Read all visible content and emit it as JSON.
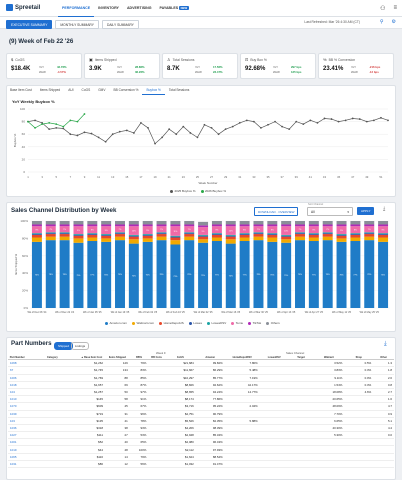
{
  "app": {
    "name": "Spreetail"
  },
  "nav": {
    "items": [
      {
        "label": "PERFORMANCE",
        "active": true
      },
      {
        "label": "INVENTORY",
        "active": false
      },
      {
        "label": "ADVERTISING",
        "active": false
      },
      {
        "label": "PAYABLES",
        "active": false,
        "badge": "NEW"
      }
    ]
  },
  "subtabs": [
    {
      "label": "EXECUTIVE SUMMARY",
      "active": true
    },
    {
      "label": "MONTHLY SUMMARY",
      "active": false
    },
    {
      "label": "DAILY SUMMARY",
      "active": false
    }
  ],
  "last_refreshed": "Last Refreshed: Mar '26 4:30 AM (CT)",
  "week_title": "(9) Week of Feb 22 '26",
  "kpis": [
    {
      "label": "CoGS",
      "icon": "$",
      "value": "$18.4K",
      "yoy_label": "YoY",
      "wow_label": "WoW",
      "yoy": "42.76%",
      "wow": "-4.57%",
      "yoy_dir": "pos",
      "wow_dir": "neg",
      "yoy_abs": "",
      "wow_abs": ""
    },
    {
      "label": "Items Shipped",
      "icon": "▣",
      "value": "3.9K",
      "yoy_label": "YoY",
      "wow_label": "WoW",
      "yoy": "28.86%",
      "wow": "36.26%",
      "yoy_dir": "pos",
      "wow_dir": "pos",
      "yoy_abs": "",
      "wow_abs": ""
    },
    {
      "label": "Total Sessions",
      "icon": "♙",
      "value": "8.7K",
      "yoy_label": "YoY",
      "wow_label": "WoW",
      "yoy": "17.56%",
      "wow": "23.47%",
      "yoy_dir": "pos",
      "wow_dir": "pos",
      "yoy_abs": "",
      "wow_abs": ""
    },
    {
      "label": "Buy Box %",
      "icon": "⊡",
      "value": "92.68%",
      "yoy_label": "YoY",
      "wow_label": "WoW",
      "yoy": "297 bps",
      "wow": "125 bps",
      "yoy_dir": "pos",
      "wow_dir": "pos",
      "yoy_abs": "",
      "wow_abs": ""
    },
    {
      "label": "BB % Conversion",
      "icon": "%",
      "value": "23.41%",
      "yoy_label": "YoY",
      "wow_label": "WoW",
      "yoy": "-216 bps",
      "wow": "-12 bps",
      "yoy_dir": "neg",
      "wow_dir": "neg",
      "yoy_abs": "",
      "wow_abs": ""
    }
  ],
  "metric_tabs": [
    {
      "label": "Base Item Cost",
      "active": false
    },
    {
      "label": "Items Shipped",
      "active": false
    },
    {
      "label": "AUI",
      "active": false
    },
    {
      "label": "CoGS",
      "active": false
    },
    {
      "label": "GMV",
      "active": false
    },
    {
      "label": "BB Conversion %",
      "active": false
    },
    {
      "label": "Buybox %",
      "active": true
    },
    {
      "label": "Total Sessions",
      "active": false
    }
  ],
  "line_chart": {
    "title": "YoY Weekly Buybox %",
    "ylabel": "Buybox %",
    "xlabel": "Week Number",
    "y_ticks": [
      "100",
      "80",
      "60",
      "40",
      "20",
      "0"
    ]
  },
  "chart_data": [
    {
      "type": "line",
      "title": "YoY Weekly Buybox %",
      "xlabel": "Week Number",
      "ylabel": "Buybox %",
      "ylim": [
        0,
        100
      ],
      "x": [
        1,
        2,
        3,
        4,
        5,
        6,
        7,
        8,
        9,
        10,
        11,
        12,
        13,
        14,
        15,
        16,
        17,
        18,
        19,
        20,
        21,
        22,
        23,
        24,
        25,
        26,
        27,
        28,
        29,
        30,
        31,
        32,
        33,
        34,
        35,
        36,
        37,
        38,
        39,
        40,
        41,
        42,
        43,
        44,
        45,
        46,
        47,
        48,
        49,
        50,
        51,
        52
      ],
      "series": [
        {
          "name": "2025 Buybox %",
          "color": "#555555",
          "values": [
            80,
            82,
            78,
            68,
            70,
            69,
            60,
            58,
            63,
            61,
            55,
            48,
            60,
            64,
            66,
            62,
            78,
            70,
            45,
            55,
            68,
            60,
            72,
            62,
            55,
            75,
            70,
            60,
            68,
            72,
            78,
            82,
            80,
            70,
            75,
            80,
            72,
            68,
            80,
            76,
            82,
            78,
            85,
            84,
            80,
            82,
            85,
            84,
            80,
            82,
            86,
            82
          ]
        },
        {
          "name": "2026 Buybox %",
          "color": "#2aa84a",
          "values": [
            80,
            70,
            76,
            78,
            76,
            72,
            82,
            80,
            92,
            null,
            null,
            null,
            null,
            null,
            null,
            null,
            null,
            null,
            null,
            null,
            null,
            null,
            null,
            null,
            null,
            null,
            null,
            null,
            null,
            null,
            null,
            null,
            null,
            null,
            null,
            null,
            null,
            null,
            null,
            null,
            null,
            null,
            null,
            null,
            null,
            null,
            null,
            null,
            null,
            null,
            null,
            null
          ]
        }
      ],
      "legend": "bottom"
    },
    {
      "type": "bar",
      "stacked": true,
      "title": "Sales Channel Distribution by Week",
      "ylabel": "Items Shipped %",
      "ylim": [
        0,
        100
      ],
      "categories": [
        "Wk of Dec 08 '24",
        "Wk of Dec 15 '24",
        "Wk of Dec 22 '24",
        "Wk of Dec 29 '24",
        "Wk of Jan 05 '25",
        "Wk of Jan 12 '25",
        "Wk of Jan 19 '25",
        "Wk of Jan 26 '25",
        "Wk of Feb 02 '25",
        "Wk of Feb 09 '25",
        "Wk of Feb 16 '25",
        "Wk of Feb 23 '25",
        "Wk of Mar 02 '25",
        "Wk of Mar 09 '25",
        "Wk of Mar 16 '25",
        "Wk of Mar 23 '25",
        "Wk of Mar 30 '25",
        "Wk of Apr 06 '25",
        "Wk of Apr 13 '25",
        "Wk of Apr 20 '25",
        "Wk of Apr 27 '25",
        "Wk of May 04 '25",
        "Wk of May 11 '25",
        "Wk of May 18 '25",
        "Wk of May 25 '25",
        "Wk of Jun 01 '25"
      ],
      "series": [
        {
          "name": "Amazon.com",
          "color": "#1f7cc7",
          "values": [
            76,
            78,
            78,
            75,
            77,
            76,
            78,
            74,
            76,
            78,
            73,
            78,
            75,
            77,
            74,
            77,
            78,
            76,
            75,
            78,
            77,
            78,
            76,
            77,
            78,
            76
          ]
        },
        {
          "name": "Walmart.com",
          "color": "#f2a900",
          "values": [
            5,
            4,
            4,
            5,
            4,
            4,
            4,
            5,
            4,
            4,
            5,
            4,
            4,
            4,
            5,
            4,
            4,
            5,
            4,
            4,
            4,
            4,
            4,
            4,
            4,
            5
          ]
        },
        {
          "name": "HomeDepotUS",
          "color": "#e8492a",
          "values": [
            3,
            3,
            3,
            3,
            3,
            3,
            3,
            3,
            3,
            3,
            3,
            3,
            3,
            3,
            3,
            3,
            3,
            3,
            3,
            3,
            3,
            3,
            3,
            3,
            3,
            3
          ]
        },
        {
          "name": "Lowes",
          "color": "#2a55a8",
          "values": [
            1,
            1,
            1,
            1,
            1,
            1,
            1,
            1,
            1,
            1,
            1,
            1,
            1,
            1,
            1,
            1,
            1,
            1,
            1,
            1,
            1,
            1,
            1,
            1,
            1,
            1
          ]
        },
        {
          "name": "LowesDSV",
          "color": "#1aa3a3",
          "values": [
            1,
            1,
            1,
            1,
            1,
            1,
            1,
            1,
            1,
            1,
            1,
            1,
            1,
            1,
            1,
            1,
            1,
            1,
            1,
            1,
            1,
            1,
            1,
            1,
            1,
            1
          ]
        },
        {
          "name": "Temu",
          "color": "#f06aa8",
          "values": [
            8,
            7,
            7,
            9,
            8,
            9,
            7,
            10,
            9,
            7,
            11,
            7,
            9,
            8,
            10,
            8,
            7,
            8,
            10,
            7,
            8,
            7,
            9,
            8,
            7,
            8
          ]
        },
        {
          "name": "TikTok",
          "color": "#b02ab8",
          "values": [
            2,
            2,
            2,
            2,
            2,
            2,
            2,
            2,
            2,
            2,
            2,
            2,
            2,
            2,
            2,
            2,
            2,
            2,
            2,
            2,
            2,
            2,
            2,
            2,
            2,
            2
          ]
        },
        {
          "name": "Others",
          "color": "#8a8f98",
          "values": [
            4,
            4,
            4,
            4,
            4,
            4,
            4,
            4,
            4,
            4,
            4,
            4,
            4,
            4,
            4,
            4,
            4,
            4,
            4,
            4,
            4,
            4,
            4,
            4,
            4,
            4
          ]
        }
      ],
      "legend": "bottom"
    }
  ],
  "bar_chart": {
    "title": "Sales Channel Distribution by Week",
    "ylabel": "Items Shipped %",
    "y_ticks": [
      "100%",
      "80%",
      "60%",
      "40%",
      "20%",
      "0%"
    ],
    "download_label": "DOWNLOAD · OVERVIEW",
    "sort_label": "Sort Channel",
    "select_value": "All",
    "apply_label": "APPLY"
  },
  "parts": {
    "title": "Part Numbers",
    "toggle": [
      {
        "label": "Shipped",
        "active": true
      },
      {
        "label": "Listings",
        "active": false
      }
    ],
    "group_headers": {
      "week": "Week 9",
      "channel": "Sales Channel"
    },
    "columns": [
      "Part Number",
      "Category",
      "▲ Base Item Cost",
      "Items Shipped",
      "BB%",
      "BB Conv",
      "CoGS",
      "Amazon",
      "HomeDepotDSV",
      "LowesDSV",
      "Target",
      "Walmart",
      "Shop",
      "Other"
    ],
    "rows": [
      {
        "pn": "1068",
        "cat": "",
        "v": [
          "$1,262",
          "129",
          "79%",
          "",
          "$21,684",
          "99.82%",
          "7.80%",
          "",
          "",
          "3.52%",
          "0.5%",
          "1.3"
        ]
      },
      {
        "pn": "67",
        "cat": "",
        "v": [
          "$1,745",
          "134",
          "83%",
          "",
          "$11,667",
          "86.29%",
          "5.48%",
          "",
          "",
          "3.83%",
          "0.3%",
          "1.8"
        ]
      },
      {
        "pn": "1006",
        "cat": "",
        "v": [
          "$1,769",
          "88",
          "85%",
          "",
          "$10,297",
          "85.77%",
          "7.19%",
          "",
          "",
          "9.11%",
          "0.0%",
          "2.6"
        ]
      },
      {
        "pn": "1018",
        "cat": "",
        "v": [
          "$1,657",
          "69",
          "87%",
          "",
          "$8,826",
          "92.62%",
          "42.17%",
          "",
          "",
          "1.54%",
          "0.3%",
          "0.8"
        ]
      },
      {
        "pn": "104",
        "cat": "",
        "v": [
          "$1,257",
          "50",
          "97%",
          "",
          "$8,655",
          "94.24%",
          "14.77%",
          "",
          "",
          "18.08%",
          "4.6%",
          "2.7"
        ]
      },
      {
        "pn": "1010",
        "cat": "",
        "v": [
          "$145",
          "58",
          "91%",
          "",
          "$8,174",
          "77.86%",
          "",
          "",
          "",
          "20.65%",
          "",
          "1.6"
        ]
      },
      {
        "pn": "1070",
        "cat": "",
        "v": [
          "$609",
          "45",
          "67%",
          "",
          "$3,716",
          "95.22%",
          "2.04%",
          "",
          "",
          "48.09%",
          "",
          "4.7"
        ]
      },
      {
        "pn": "1039",
        "cat": "",
        "v": [
          "$719",
          "31",
          "96%",
          "",
          "$2,751",
          "90.79%",
          "",
          "",
          "",
          "7.70%",
          "",
          "0.9"
        ]
      },
      {
        "pn": "103",
        "cat": "",
        "v": [
          "$135",
          "41",
          "78%",
          "",
          "$5,526",
          "82.35%",
          "5.88%",
          "",
          "",
          "6.65%",
          "",
          "5.1"
        ]
      },
      {
        "pn": "1036",
        "cat": "",
        "v": [
          "$318",
          "38",
          "93%",
          "",
          "$4,206",
          "98.39%",
          "",
          "",
          "",
          "40.30%",
          "",
          "4.4"
        ]
      },
      {
        "pn": "1027",
        "cat": "",
        "v": [
          "$111",
          "27",
          "53%",
          "",
          "$2,948",
          "85.34%",
          "",
          "",
          "",
          "5.30%",
          "",
          "0.0"
        ]
      },
      {
        "pn": "1001",
        "cat": "",
        "v": [
          "$52",
          "40",
          "65%",
          "",
          "$2,080",
          "96.43%",
          "",
          "",
          "",
          "",
          "",
          ""
        ]
      },
      {
        "pn": "1019",
        "cat": "",
        "v": [
          "$44",
          "48",
          "100%",
          "",
          "$2,112",
          "97.93%",
          "",
          "",
          "",
          "",
          "",
          ""
        ]
      },
      {
        "pn": "1065",
        "cat": "",
        "v": [
          "$116",
          "14",
          "79%",
          "",
          "$1,624",
          "88.54%",
          "",
          "",
          "",
          "",
          "",
          ""
        ]
      },
      {
        "pn": "1031",
        "cat": "",
        "v": [
          "$86",
          "12",
          "56%",
          "",
          "$1,032",
          "91.47%",
          "",
          "",
          "",
          "",
          "",
          ""
        ]
      }
    ]
  },
  "colors": {
    "accent": "#1f6fd1",
    "positive": "#1a9b4b",
    "negative": "#d23a3a"
  }
}
